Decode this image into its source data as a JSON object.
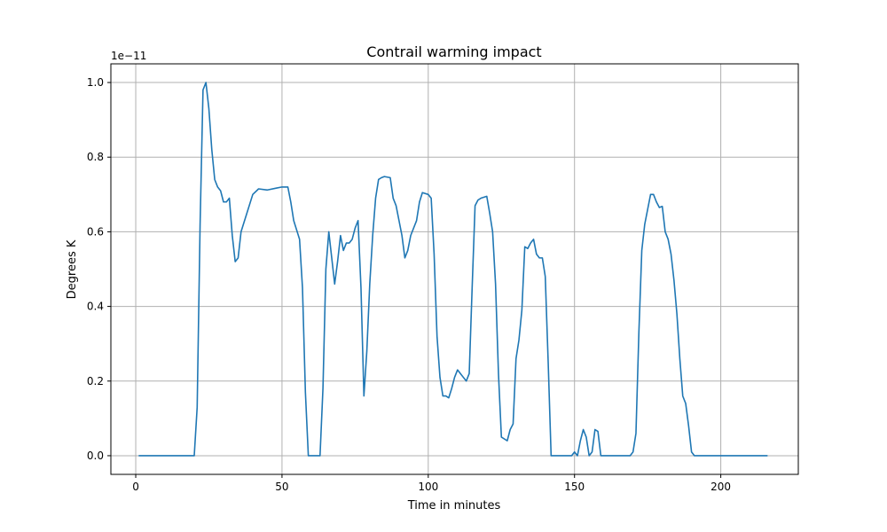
{
  "chart_data": {
    "type": "line",
    "title": "Contrail warming impact",
    "xlabel": "Time in minutes",
    "ylabel": "Degrees K",
    "y_offset_label": "1e−11",
    "xlim": [
      -8.5,
      226.5
    ],
    "ylim": [
      -0.05,
      1.05
    ],
    "xticks": [
      0,
      50,
      100,
      150,
      200
    ],
    "xtick_labels": [
      "0",
      "50",
      "100",
      "150",
      "200"
    ],
    "yticks": [
      0.0,
      0.2,
      0.4,
      0.6,
      0.8,
      1.0
    ],
    "ytick_labels": [
      "0.0",
      "0.2",
      "0.4",
      "0.6",
      "0.8",
      "1.0"
    ],
    "grid": true,
    "series": [
      {
        "color": "#1f77b4",
        "points": [
          [
            1,
            0
          ],
          [
            10,
            0
          ],
          [
            20,
            0
          ],
          [
            21,
            0.13
          ],
          [
            22,
            0.62
          ],
          [
            23,
            0.98
          ],
          [
            24,
            1.0
          ],
          [
            25,
            0.93
          ],
          [
            26,
            0.82
          ],
          [
            27,
            0.74
          ],
          [
            28,
            0.72
          ],
          [
            29,
            0.71
          ],
          [
            30,
            0.68
          ],
          [
            31,
            0.68
          ],
          [
            32,
            0.69
          ],
          [
            33,
            0.59
          ],
          [
            34,
            0.52
          ],
          [
            35,
            0.53
          ],
          [
            36,
            0.6
          ],
          [
            38,
            0.65
          ],
          [
            40,
            0.7
          ],
          [
            42,
            0.715
          ],
          [
            45,
            0.712
          ],
          [
            48,
            0.717
          ],
          [
            50,
            0.72
          ],
          [
            52,
            0.72
          ],
          [
            53,
            0.68
          ],
          [
            54,
            0.63
          ],
          [
            56,
            0.58
          ],
          [
            57,
            0.45
          ],
          [
            58,
            0.17
          ],
          [
            59,
            0
          ],
          [
            63,
            0
          ],
          [
            64,
            0.18
          ],
          [
            65,
            0.5
          ],
          [
            66,
            0.6
          ],
          [
            67,
            0.53
          ],
          [
            68,
            0.46
          ],
          [
            69,
            0.52
          ],
          [
            70,
            0.59
          ],
          [
            71,
            0.55
          ],
          [
            72,
            0.57
          ],
          [
            73,
            0.57
          ],
          [
            74,
            0.58
          ],
          [
            75,
            0.61
          ],
          [
            76,
            0.63
          ],
          [
            77,
            0.45
          ],
          [
            78,
            0.16
          ],
          [
            79,
            0.28
          ],
          [
            80,
            0.46
          ],
          [
            81,
            0.59
          ],
          [
            82,
            0.69
          ],
          [
            83,
            0.74
          ],
          [
            84,
            0.745
          ],
          [
            85,
            0.748
          ],
          [
            87,
            0.745
          ],
          [
            88,
            0.69
          ],
          [
            89,
            0.67
          ],
          [
            90,
            0.63
          ],
          [
            91,
            0.59
          ],
          [
            92,
            0.53
          ],
          [
            93,
            0.55
          ],
          [
            94,
            0.59
          ],
          [
            96,
            0.63
          ],
          [
            97,
            0.68
          ],
          [
            98,
            0.705
          ],
          [
            100,
            0.7
          ],
          [
            101,
            0.69
          ],
          [
            102,
            0.54
          ],
          [
            103,
            0.32
          ],
          [
            104,
            0.21
          ],
          [
            105,
            0.16
          ],
          [
            106,
            0.16
          ],
          [
            107,
            0.155
          ],
          [
            108,
            0.18
          ],
          [
            109,
            0.21
          ],
          [
            110,
            0.23
          ],
          [
            111,
            0.22
          ],
          [
            112,
            0.21
          ],
          [
            113,
            0.2
          ],
          [
            114,
            0.22
          ],
          [
            115,
            0.45
          ],
          [
            116,
            0.67
          ],
          [
            117,
            0.685
          ],
          [
            118,
            0.69
          ],
          [
            120,
            0.695
          ],
          [
            121,
            0.65
          ],
          [
            122,
            0.6
          ],
          [
            123,
            0.46
          ],
          [
            124,
            0.22
          ],
          [
            125,
            0.05
          ],
          [
            127,
            0.04
          ],
          [
            128,
            0.07
          ],
          [
            129,
            0.085
          ],
          [
            130,
            0.26
          ],
          [
            131,
            0.31
          ],
          [
            132,
            0.39
          ],
          [
            133,
            0.56
          ],
          [
            134,
            0.555
          ],
          [
            135,
            0.57
          ],
          [
            136,
            0.58
          ],
          [
            137,
            0.54
          ],
          [
            138,
            0.53
          ],
          [
            139,
            0.53
          ],
          [
            140,
            0.48
          ],
          [
            141,
            0.25
          ],
          [
            142,
            0
          ],
          [
            149,
            0
          ],
          [
            150,
            0.01
          ],
          [
            151,
            0
          ],
          [
            152,
            0.04
          ],
          [
            153,
            0.07
          ],
          [
            154,
            0.05
          ],
          [
            155,
            0
          ],
          [
            156,
            0.01
          ],
          [
            157,
            0.07
          ],
          [
            158,
            0.065
          ],
          [
            159,
            0
          ],
          [
            169,
            0
          ],
          [
            170,
            0.01
          ],
          [
            171,
            0.06
          ],
          [
            172,
            0.33
          ],
          [
            173,
            0.55
          ],
          [
            174,
            0.62
          ],
          [
            175,
            0.66
          ],
          [
            176,
            0.7
          ],
          [
            177,
            0.7
          ],
          [
            178,
            0.68
          ],
          [
            179,
            0.665
          ],
          [
            180,
            0.668
          ],
          [
            181,
            0.6
          ],
          [
            182,
            0.58
          ],
          [
            183,
            0.54
          ],
          [
            184,
            0.47
          ],
          [
            185,
            0.38
          ],
          [
            186,
            0.26
          ],
          [
            187,
            0.16
          ],
          [
            188,
            0.14
          ],
          [
            189,
            0.08
          ],
          [
            190,
            0.01
          ],
          [
            191,
            0
          ],
          [
            200,
            0
          ],
          [
            210,
            0
          ],
          [
            216,
            0
          ]
        ]
      }
    ]
  }
}
